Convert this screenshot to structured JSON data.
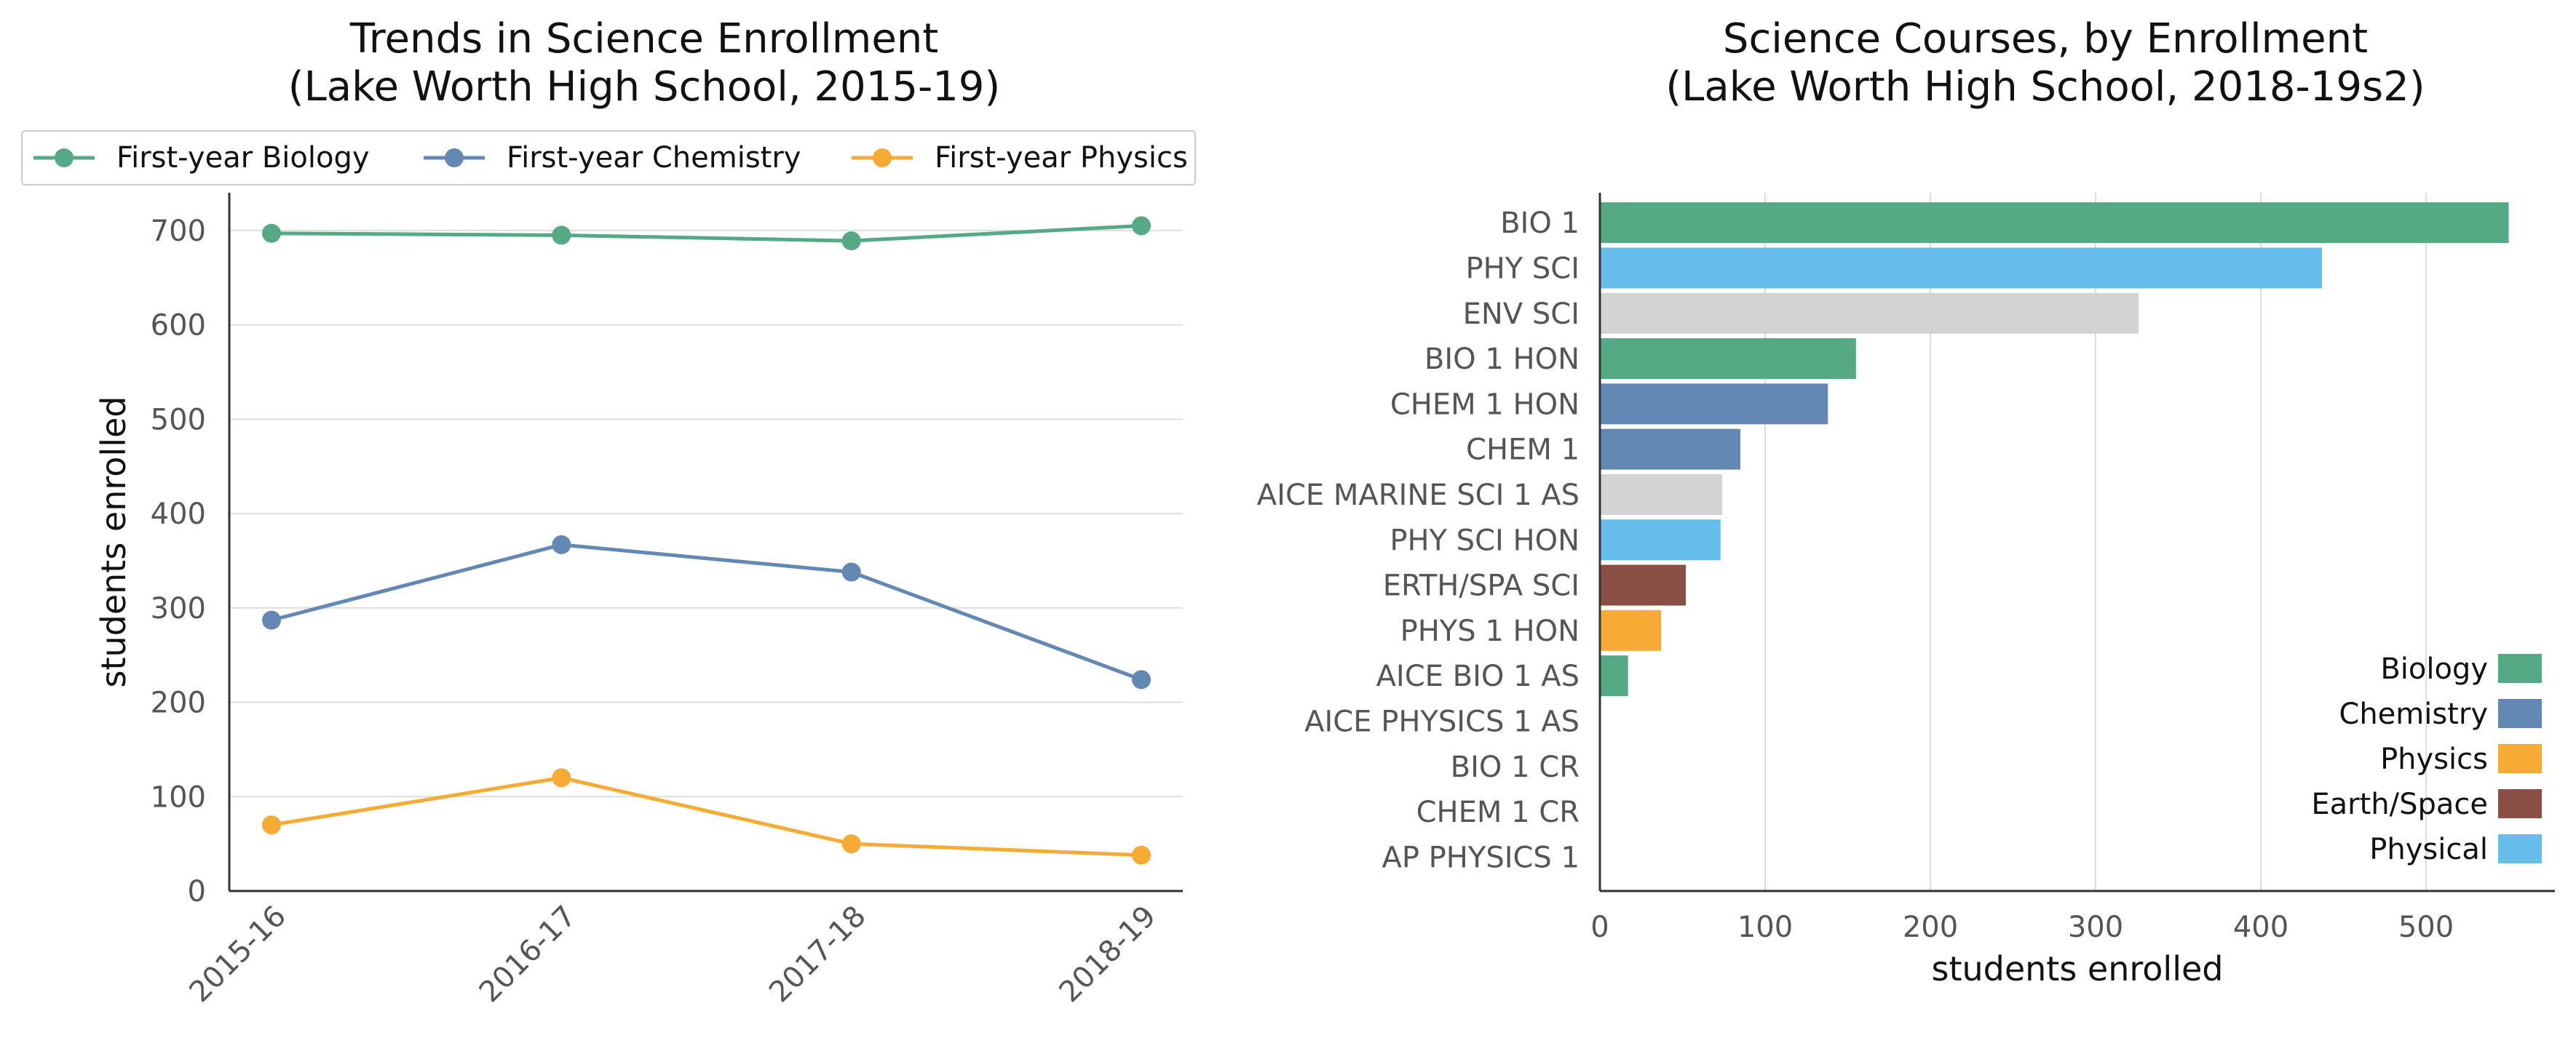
{
  "colors": {
    "Biology": "#55aa85",
    "Chemistry": "#6488b4",
    "Physics": "#f7ab35",
    "Earth/Space": "#8a4f44",
    "Physical": "#64bdea",
    "Other": "#d3d3d3"
  },
  "chart_data": [
    {
      "type": "line",
      "title": "Trends in Science Enrollment",
      "subtitle": "(Lake Worth High School, 2015-19)",
      "xlabel": "",
      "ylabel": "students enrolled",
      "x": [
        "2015-16",
        "2016-17",
        "2017-18",
        "2018-19"
      ],
      "ylim": [
        0,
        740
      ],
      "yticks": [
        0,
        100,
        200,
        300,
        400,
        500,
        600,
        700
      ],
      "grid": "horizontal",
      "legend_position": "top",
      "series": [
        {
          "name": "First-year Biology",
          "color_key": "Biology",
          "values": [
            697,
            695,
            689,
            705
          ]
        },
        {
          "name": "First-year Chemistry",
          "color_key": "Chemistry",
          "values": [
            287,
            367,
            338,
            224
          ]
        },
        {
          "name": "First-year Physics",
          "color_key": "Physics",
          "values": [
            70,
            120,
            50,
            38
          ]
        }
      ]
    },
    {
      "type": "bar",
      "orientation": "horizontal",
      "title": "Science Courses, by Enrollment",
      "subtitle": "(Lake Worth High School, 2018-19s2)",
      "xlabel": "students enrolled",
      "ylabel": "",
      "xlim": [
        0,
        560
      ],
      "xticks": [
        0,
        100,
        200,
        300,
        400,
        500
      ],
      "grid": "vertical",
      "legend_position": "lower right",
      "categories": [
        "BIO 1",
        "PHY SCI",
        "ENV SCI",
        "BIO 1 HON",
        "CHEM 1 HON",
        "CHEM 1",
        "AICE MARINE SCI 1 AS",
        "PHY SCI HON",
        "ERTH/SPA SCI",
        "PHYS 1 HON",
        "AICE BIO 1 AS",
        "AICE PHYSICS 1 AS",
        "BIO 1 CR",
        "CHEM 1 CR",
        "AP PHYSICS 1"
      ],
      "values": [
        550,
        437,
        326,
        155,
        138,
        85,
        74,
        73,
        52,
        37,
        17,
        0,
        0,
        0,
        0
      ],
      "bar_groups": [
        "Biology",
        "Physical",
        "Other",
        "Biology",
        "Chemistry",
        "Chemistry",
        "Other",
        "Physical",
        "Earth/Space",
        "Physics",
        "Biology",
        "Physics",
        "Biology",
        "Chemistry",
        "Physics"
      ],
      "legend": [
        "Biology",
        "Chemistry",
        "Physics",
        "Earth/Space",
        "Physical"
      ]
    }
  ]
}
